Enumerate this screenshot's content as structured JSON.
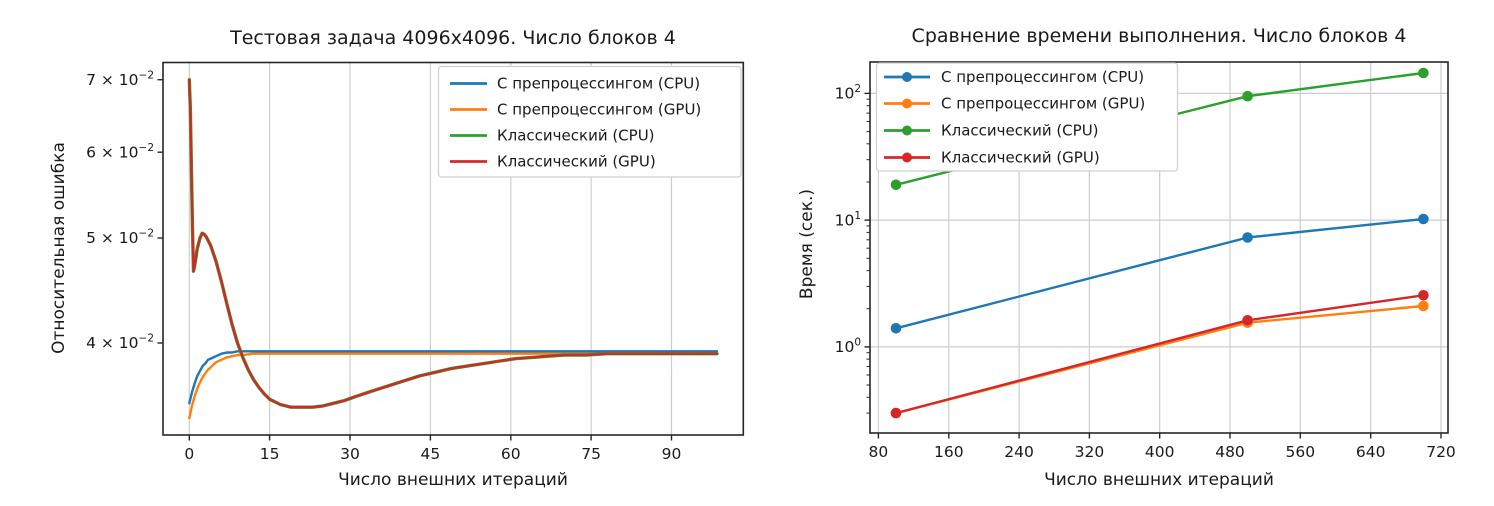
{
  "figure": {
    "background": "#ffffff",
    "text_color": "#1a1a1a",
    "grid_color": "#cdcdcd",
    "spine_color": "#262626"
  },
  "chart_data": [
    {
      "type": "line",
      "title": "Тестовая задача 4096x4096. Число блоков 4",
      "xlabel": "Число внешних итераций",
      "ylabel": "Относительная ошибка",
      "yscale": "log",
      "xlim": [
        -4.9,
        103.4
      ],
      "ylim": [
        0.0329,
        0.0726
      ],
      "grid": {
        "x": true,
        "y": false
      },
      "y_minor_ticks": false,
      "x_ticks": [
        {
          "v": 0,
          "label": "0"
        },
        {
          "v": 15,
          "label": "15"
        },
        {
          "v": 30,
          "label": "30"
        },
        {
          "v": 45,
          "label": "45"
        },
        {
          "v": 60,
          "label": "60"
        },
        {
          "v": 75,
          "label": "75"
        },
        {
          "v": 90,
          "label": "90"
        }
      ],
      "y_ticks": [
        {
          "v": 0.07,
          "base": "7 × 10",
          "sup": "−2"
        },
        {
          "v": 0.06,
          "base": "6 × 10",
          "sup": "−2"
        },
        {
          "v": 0.05,
          "base": "5 × 10",
          "sup": "−2"
        },
        {
          "v": 0.04,
          "base": "4 × 10",
          "sup": "−2"
        }
      ],
      "legend": {
        "position": "upper right",
        "marker_in_legend": false,
        "entries": [
          {
            "key": "pre-cpu",
            "label": "С препроцессингом (CPU)",
            "color": "#1f77b4"
          },
          {
            "key": "pre-gpu",
            "label": "С препроцессингом (GPU)",
            "color": "#ff7f0e"
          },
          {
            "key": "classic-cpu",
            "label": "Классический (CPU)",
            "color": "#2ca02c"
          },
          {
            "key": "classic-gpu",
            "label": "Классический (GPU)",
            "color": "#d62728"
          }
        ]
      },
      "series": [
        {
          "key": "pre-cpu",
          "name": "С препроцессингом (CPU)",
          "color": "#1f77b4",
          "lw": 2.4,
          "marker": false,
          "points": [
            [
              0,
              0.0352
            ],
            [
              0.5,
              0.036
            ],
            [
              1,
              0.0367
            ],
            [
              1.5,
              0.0373
            ],
            [
              2,
              0.0377
            ],
            [
              2.5,
              0.0381
            ],
            [
              3,
              0.0383
            ],
            [
              3.5,
              0.0386
            ],
            [
              4,
              0.0387
            ],
            [
              4.5,
              0.0388
            ],
            [
              5,
              0.0389
            ],
            [
              6,
              0.0391
            ],
            [
              7,
              0.0392
            ],
            [
              8,
              0.0392
            ],
            [
              9,
              0.0393
            ],
            [
              10,
              0.0393
            ],
            [
              12,
              0.0393
            ],
            [
              15,
              0.0393
            ],
            [
              20,
              0.0393
            ],
            [
              98.5,
              0.0393
            ]
          ]
        },
        {
          "key": "pre-gpu",
          "name": "С препроцессингом (GPU)",
          "color": "#ff7f0e",
          "lw": 2.4,
          "marker": false,
          "points": [
            [
              0,
              0.0341
            ],
            [
              0.5,
              0.035
            ],
            [
              1,
              0.0357
            ],
            [
              1.5,
              0.0363
            ],
            [
              2,
              0.0368
            ],
            [
              2.5,
              0.0372
            ],
            [
              3,
              0.0375
            ],
            [
              3.5,
              0.0378
            ],
            [
              4,
              0.038
            ],
            [
              4.5,
              0.0382
            ],
            [
              5,
              0.0384
            ],
            [
              6,
              0.0386
            ],
            [
              7,
              0.0388
            ],
            [
              8,
              0.0389
            ],
            [
              9,
              0.039
            ],
            [
              10,
              0.039
            ],
            [
              12,
              0.0391
            ],
            [
              15,
              0.0391
            ],
            [
              20,
              0.0391
            ],
            [
              98.5,
              0.0391
            ]
          ]
        },
        {
          "key": "classic-cpu",
          "name": "Классический (CPU)",
          "color": "#2ca02c",
          "lw": 3.4,
          "marker": false,
          "points": [
            [
              0,
              0.07
            ],
            [
              0.2,
              0.066
            ],
            [
              0.4,
              0.058
            ],
            [
              0.6,
              0.051
            ],
            [
              0.8,
              0.0466
            ],
            [
              1.0,
              0.0471
            ],
            [
              1.5,
              0.0489
            ],
            [
              2.0,
              0.05
            ],
            [
              2.4,
              0.0505
            ],
            [
              2.8,
              0.0504
            ],
            [
              3.2,
              0.0501
            ],
            [
              4,
              0.0492
            ],
            [
              5,
              0.0476
            ],
            [
              6,
              0.0456
            ],
            [
              7,
              0.0435
            ],
            [
              8,
              0.0416
            ],
            [
              9,
              0.04
            ],
            [
              10,
              0.0388
            ],
            [
              11,
              0.0378
            ],
            [
              12,
              0.037
            ],
            [
              13,
              0.0364
            ],
            [
              14,
              0.0359
            ],
            [
              15,
              0.0355
            ],
            [
              16,
              0.0353
            ],
            [
              17,
              0.0351
            ],
            [
              18,
              0.035
            ],
            [
              19,
              0.0349
            ],
            [
              21,
              0.0349
            ],
            [
              23,
              0.0349
            ],
            [
              25,
              0.035
            ],
            [
              27,
              0.0352
            ],
            [
              29,
              0.0354
            ],
            [
              31,
              0.0357
            ],
            [
              34,
              0.0361
            ],
            [
              37,
              0.0365
            ],
            [
              40,
              0.0369
            ],
            [
              43,
              0.0373
            ],
            [
              46,
              0.0376
            ],
            [
              49,
              0.0379
            ],
            [
              52,
              0.0381
            ],
            [
              55,
              0.0383
            ],
            [
              58,
              0.0385
            ],
            [
              61,
              0.0387
            ],
            [
              64,
              0.0388
            ],
            [
              67,
              0.0389
            ],
            [
              70,
              0.039
            ],
            [
              74,
              0.039
            ],
            [
              78,
              0.0391
            ],
            [
              85,
              0.0391
            ],
            [
              98.5,
              0.0391
            ]
          ]
        },
        {
          "key": "classic-gpu",
          "name": "Классический (GPU)",
          "color": "#d62728",
          "lw": 2.3,
          "marker": false,
          "points": [
            [
              0,
              0.07
            ],
            [
              0.2,
              0.066
            ],
            [
              0.4,
              0.058
            ],
            [
              0.6,
              0.051
            ],
            [
              0.8,
              0.0466
            ],
            [
              1.0,
              0.0471
            ],
            [
              1.5,
              0.0489
            ],
            [
              2.0,
              0.05
            ],
            [
              2.4,
              0.0505
            ],
            [
              2.8,
              0.0504
            ],
            [
              3.2,
              0.0501
            ],
            [
              4,
              0.0492
            ],
            [
              5,
              0.0476
            ],
            [
              6,
              0.0456
            ],
            [
              7,
              0.0435
            ],
            [
              8,
              0.0416
            ],
            [
              9,
              0.04
            ],
            [
              10,
              0.0388
            ],
            [
              11,
              0.0378
            ],
            [
              12,
              0.037
            ],
            [
              13,
              0.0364
            ],
            [
              14,
              0.0359
            ],
            [
              15,
              0.0355
            ],
            [
              16,
              0.0353
            ],
            [
              17,
              0.0351
            ],
            [
              18,
              0.035
            ],
            [
              19,
              0.0349
            ],
            [
              21,
              0.0349
            ],
            [
              23,
              0.0349
            ],
            [
              25,
              0.035
            ],
            [
              27,
              0.0352
            ],
            [
              29,
              0.0354
            ],
            [
              31,
              0.0357
            ],
            [
              34,
              0.0361
            ],
            [
              37,
              0.0365
            ],
            [
              40,
              0.0369
            ],
            [
              43,
              0.0373
            ],
            [
              46,
              0.0376
            ],
            [
              49,
              0.0379
            ],
            [
              52,
              0.0381
            ],
            [
              55,
              0.0383
            ],
            [
              58,
              0.0385
            ],
            [
              61,
              0.0387
            ],
            [
              64,
              0.0388
            ],
            [
              67,
              0.0389
            ],
            [
              70,
              0.039
            ],
            [
              74,
              0.039
            ],
            [
              78,
              0.0391
            ],
            [
              85,
              0.0391
            ],
            [
              98.5,
              0.0391
            ]
          ]
        }
      ]
    },
    {
      "type": "line",
      "title": "Сравнение времени выполнения. Число блоков 4",
      "xlabel": "Число внешних итераций",
      "ylabel": "Время (сек.)",
      "yscale": "log",
      "xlim": [
        70.4,
        728
      ],
      "ylim": [
        0.209,
        177
      ],
      "grid": {
        "x": true,
        "y": true
      },
      "y_minor_ticks": true,
      "x_ticks": [
        {
          "v": 80,
          "label": "80"
        },
        {
          "v": 160,
          "label": "160"
        },
        {
          "v": 240,
          "label": "240"
        },
        {
          "v": 320,
          "label": "320"
        },
        {
          "v": 400,
          "label": "400"
        },
        {
          "v": 480,
          "label": "480"
        },
        {
          "v": 560,
          "label": "560"
        },
        {
          "v": 640,
          "label": "640"
        },
        {
          "v": 720,
          "label": "720"
        }
      ],
      "y_ticks": [
        {
          "v": 100,
          "base": "10",
          "sup": "2"
        },
        {
          "v": 10,
          "base": "10",
          "sup": "1"
        },
        {
          "v": 1,
          "base": "10",
          "sup": "0"
        }
      ],
      "legend": {
        "position": "upper left",
        "marker_in_legend": true,
        "entries": [
          {
            "key": "pre-cpu",
            "label": "С препроцессингом (CPU)",
            "color": "#1f77b4"
          },
          {
            "key": "pre-gpu",
            "label": "С препроцессингом (GPU)",
            "color": "#ff7f0e"
          },
          {
            "key": "classic-cpu",
            "label": "Классический (CPU)",
            "color": "#2ca02c"
          },
          {
            "key": "classic-gpu",
            "label": "Классический (GPU)",
            "color": "#d62728"
          }
        ]
      },
      "series": [
        {
          "key": "pre-cpu",
          "name": "С препроцессингом (CPU)",
          "color": "#1f77b4",
          "lw": 2.4,
          "marker": true,
          "points": [
            [
              100,
              1.4
            ],
            [
              500,
              7.3
            ],
            [
              700,
              10.2
            ]
          ]
        },
        {
          "key": "pre-gpu",
          "name": "С препроцессингом (GPU)",
          "color": "#ff7f0e",
          "lw": 2.4,
          "marker": true,
          "points": [
            [
              100,
              0.3
            ],
            [
              500,
              1.55
            ],
            [
              700,
              2.1
            ]
          ]
        },
        {
          "key": "classic-cpu",
          "name": "Классический (CPU)",
          "color": "#2ca02c",
          "lw": 2.4,
          "marker": true,
          "points": [
            [
              100,
              19
            ],
            [
              500,
              95
            ],
            [
              700,
              145
            ]
          ]
        },
        {
          "key": "classic-gpu",
          "name": "Классический (GPU)",
          "color": "#d62728",
          "lw": 2.4,
          "marker": true,
          "points": [
            [
              100,
              0.3
            ],
            [
              500,
              1.62
            ],
            [
              700,
              2.55
            ]
          ]
        }
      ]
    }
  ]
}
